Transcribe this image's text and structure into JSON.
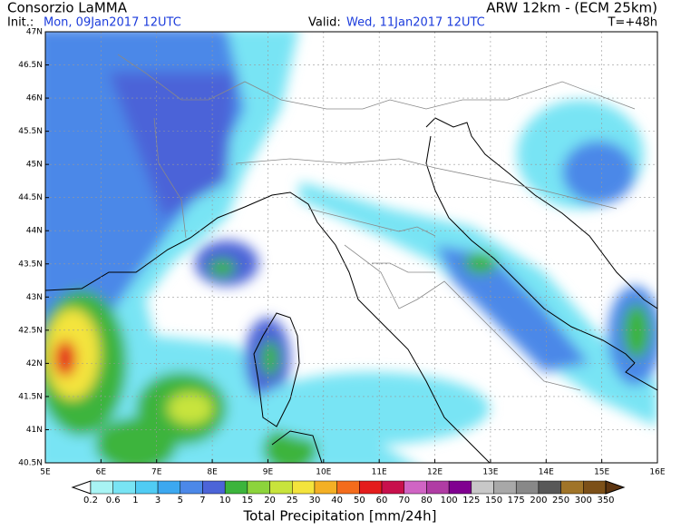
{
  "header": {
    "institution": "Consorzio LaMMA",
    "model": "ARW 12km - (ECM 25km)",
    "init_label": "Init.:",
    "init_time": "Mon, 09Jan2017 12UTC",
    "valid_label": "Valid:",
    "valid_time": "Wed, 11Jan2017 12UTC",
    "lead_time": "T=+48h"
  },
  "map": {
    "lat_labels": [
      "47N",
      "46.5N",
      "46N",
      "45.5N",
      "45N",
      "44.5N",
      "44N",
      "43.5N",
      "43N",
      "42.5N",
      "42N",
      "41.5N",
      "41N",
      "40.5N"
    ],
    "lon_labels": [
      "5E",
      "6E",
      "7E",
      "8E",
      "9E",
      "10E",
      "11E",
      "12E",
      "13E",
      "14E",
      "15E",
      "16E"
    ]
  },
  "colorbar": {
    "title": "Total Precipitation [mm/24h]",
    "labels": [
      "0.2",
      "0.6",
      "1",
      "3",
      "5",
      "7",
      "10",
      "15",
      "20",
      "25",
      "30",
      "40",
      "50",
      "60",
      "70",
      "80",
      "100",
      "125",
      "150",
      "175",
      "200",
      "250",
      "300",
      "350"
    ],
    "colors": [
      "#ffffff",
      "#a8f4f4",
      "#78e4f4",
      "#50ccf4",
      "#3ca8f0",
      "#4c88e8",
      "#4c64d8",
      "#3cb43c",
      "#8cd43c",
      "#c8e43c",
      "#f4e43c",
      "#f4b024",
      "#f46c1c",
      "#e41c1c",
      "#c8104c",
      "#d064c4",
      "#b03ca4",
      "#800090",
      "#c8c8c8",
      "#a8a8a8",
      "#888888",
      "#585858",
      "#a07428",
      "#7c5018",
      "#5c3410"
    ]
  }
}
